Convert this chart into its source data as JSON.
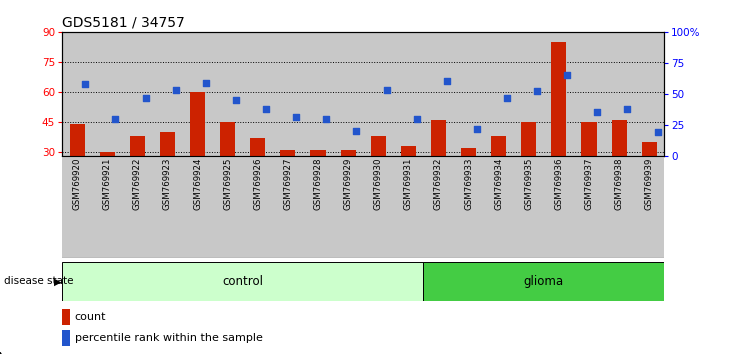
{
  "title": "GDS5181 / 34757",
  "samples": [
    "GSM769920",
    "GSM769921",
    "GSM769922",
    "GSM769923",
    "GSM769924",
    "GSM769925",
    "GSM769926",
    "GSM769927",
    "GSM769928",
    "GSM769929",
    "GSM769930",
    "GSM769931",
    "GSM769932",
    "GSM769933",
    "GSM769934",
    "GSM769935",
    "GSM769936",
    "GSM769937",
    "GSM769938",
    "GSM769939"
  ],
  "counts": [
    44,
    30,
    38,
    40,
    60,
    45,
    37,
    31,
    31,
    31,
    38,
    33,
    46,
    32,
    38,
    45,
    85,
    45,
    46,
    35
  ],
  "percentiles": [
    58,
    30,
    47,
    53,
    59,
    45,
    38,
    31,
    30,
    20,
    53,
    30,
    60,
    22,
    47,
    52,
    65,
    35,
    38,
    19
  ],
  "n_control": 12,
  "n_glioma": 8,
  "ylim_left": [
    28,
    90
  ],
  "yticks_left": [
    30,
    45,
    60,
    75,
    90
  ],
  "yticks_right": [
    0,
    25,
    50,
    75,
    100
  ],
  "bar_color": "#cc2200",
  "dot_color": "#2255cc",
  "col_bg_color": "#c8c8c8",
  "control_color": "#ccffcc",
  "glioma_color": "#44cc44",
  "bar_width": 0.5,
  "dot_size": 22,
  "title_fontsize": 10,
  "tick_fontsize": 7.5,
  "label_fontsize": 8
}
